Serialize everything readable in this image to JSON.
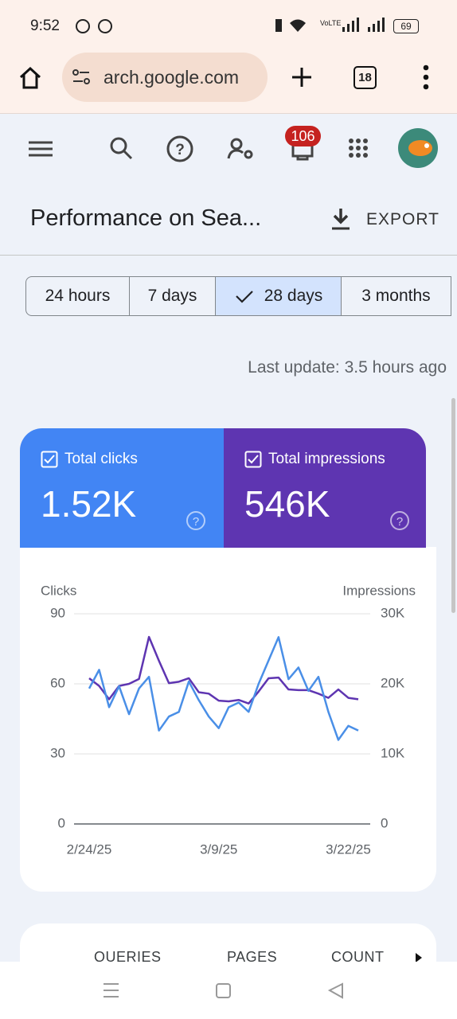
{
  "status": {
    "time": "9:52",
    "battery": "69"
  },
  "browser": {
    "url": "arch.google.com",
    "tabs": "18"
  },
  "toolbar": {
    "badge": "106"
  },
  "header": {
    "title": "Performance on Sea...",
    "export": "EXPORT"
  },
  "ranges": {
    "items": [
      "24 hours",
      "7 days",
      "28 days",
      "3 months"
    ],
    "selected": 2
  },
  "last_update": "Last update: 3.5 hours ago",
  "metrics": [
    {
      "label": "Total clicks",
      "value": "1.52K",
      "color": "#4285f4"
    },
    {
      "label": "Total impressions",
      "value": "546K",
      "color": "#5e35b1"
    }
  ],
  "chart_data": {
    "type": "line",
    "y_label": "Clicks",
    "y2_label": "Impressions",
    "categories": [
      "2/24/25",
      null,
      null,
      null,
      null,
      null,
      null,
      null,
      null,
      null,
      null,
      null,
      null,
      "3/9/25",
      null,
      null,
      null,
      null,
      null,
      null,
      null,
      null,
      null,
      null,
      null,
      null,
      "3/22/25",
      null
    ],
    "series": [
      {
        "name": "Clicks",
        "color": "#4a8fe7",
        "values": [
          58,
          66,
          50,
          59,
          47,
          58,
          63,
          40,
          46,
          48,
          61,
          53,
          46,
          41,
          50,
          52,
          48,
          60,
          70,
          80,
          62,
          67,
          57,
          63,
          48,
          36,
          42,
          40
        ]
      },
      {
        "name": "Impressions",
        "color": "#5e35b1",
        "axis": "y2",
        "values": [
          20800,
          19700,
          17800,
          19700,
          20000,
          20700,
          26700,
          23300,
          20100,
          20300,
          20800,
          18800,
          18600,
          17600,
          17500,
          17700,
          17200,
          18900,
          20800,
          20900,
          19200,
          19100,
          19100,
          18600,
          18000,
          19200,
          18000,
          17800
        ]
      }
    ],
    "ylim": [
      0,
      90
    ],
    "yticks": [
      0,
      30,
      60,
      90
    ],
    "y2lim": [
      0,
      30000
    ],
    "y2ticks": [
      0,
      {
        "value": 10000,
        "label": "10K"
      },
      {
        "value": 20000,
        "label": "20K"
      },
      {
        "value": 30000,
        "label": "30K"
      }
    ],
    "grid": true
  },
  "tabs": [
    "QUERIES",
    "PAGES",
    "COUNT"
  ]
}
